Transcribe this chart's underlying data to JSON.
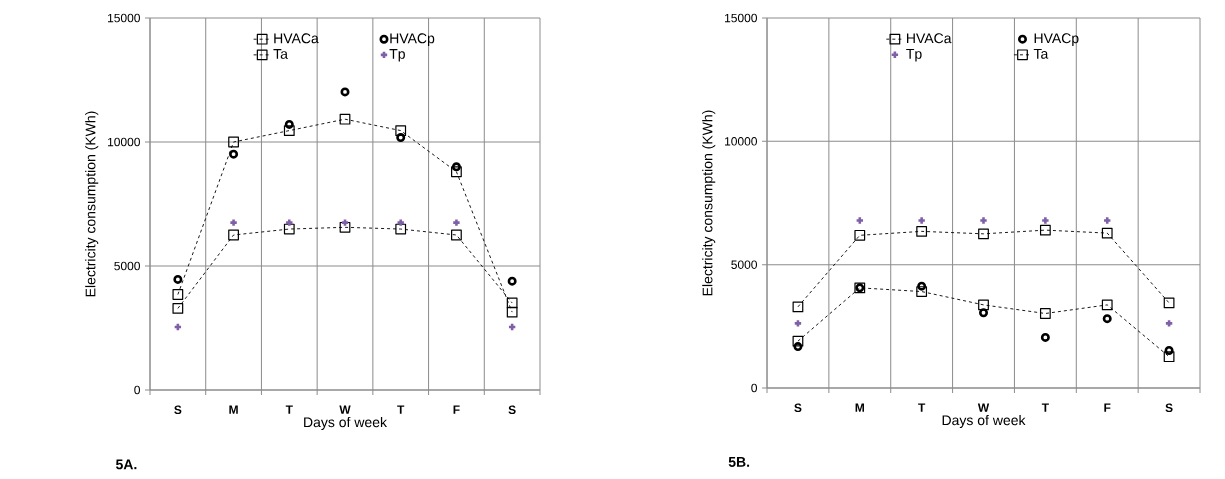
{
  "chart_data": [
    {
      "type": "line",
      "categories": [
        "S",
        "M",
        "T",
        "W",
        "T",
        "F",
        "S"
      ],
      "xlabel": "Days of week",
      "ylabel": "Electricity consumption (KWh)",
      "ylim": [
        0,
        15000
      ],
      "yticks": [
        0,
        5000,
        10000,
        15000
      ],
      "grid": true,
      "legend": "top",
      "annotations": [
        "5A."
      ],
      "series": [
        {
          "name": "HVACa",
          "color": "#000000",
          "marker": "square",
          "line_style": "dashed",
          "values": [
            3850,
            10000,
            10460,
            10920,
            10460,
            8800,
            3140
          ]
        },
        {
          "name": "HVACp",
          "type": "scatter",
          "color": "#000000",
          "marker": "circle",
          "values": [
            4460,
            9510,
            10710,
            12020,
            10180,
            9000,
            4390
          ]
        },
        {
          "name": "Ta",
          "color": "#000000",
          "marker": "square",
          "line_style": "dashed",
          "values": [
            3290,
            6250,
            6490,
            6560,
            6490,
            6250,
            3510
          ]
        },
        {
          "name": "Tp",
          "type": "scatter",
          "color": "#7f60a8",
          "marker": "cross",
          "values": [
            2540,
            6750,
            6750,
            6750,
            6750,
            6750,
            2540
          ]
        }
      ]
    },
    {
      "type": "line",
      "categories": [
        "S",
        "M",
        "T",
        "W",
        "T",
        "F",
        "S"
      ],
      "xlabel": "Days of week",
      "ylabel": "Electricity consumption (KWh)",
      "ylim": [
        0,
        15000
      ],
      "yticks": [
        0,
        5000,
        10000,
        15000
      ],
      "grid": true,
      "legend": "top",
      "annotations": [
        "5B."
      ],
      "series": [
        {
          "name": "HVACa",
          "color": "#000000",
          "marker": "square",
          "line_style": "dashed",
          "values": [
            1900,
            4060,
            3910,
            3370,
            3020,
            3370,
            1270
          ]
        },
        {
          "name": "HVACp",
          "type": "scatter",
          "color": "#000000",
          "marker": "circle",
          "values": [
            1680,
            4060,
            4130,
            3050,
            2050,
            2810,
            1520
          ]
        },
        {
          "name": "Tp",
          "type": "scatter",
          "color": "#7f60a8",
          "marker": "cross",
          "values": [
            2620,
            6790,
            6790,
            6790,
            6790,
            6790,
            2620
          ]
        },
        {
          "name": "Ta",
          "color": "#000000",
          "marker": "square",
          "line_style": "dashed",
          "values": [
            3290,
            6190,
            6350,
            6250,
            6400,
            6280,
            3450
          ]
        }
      ]
    }
  ]
}
